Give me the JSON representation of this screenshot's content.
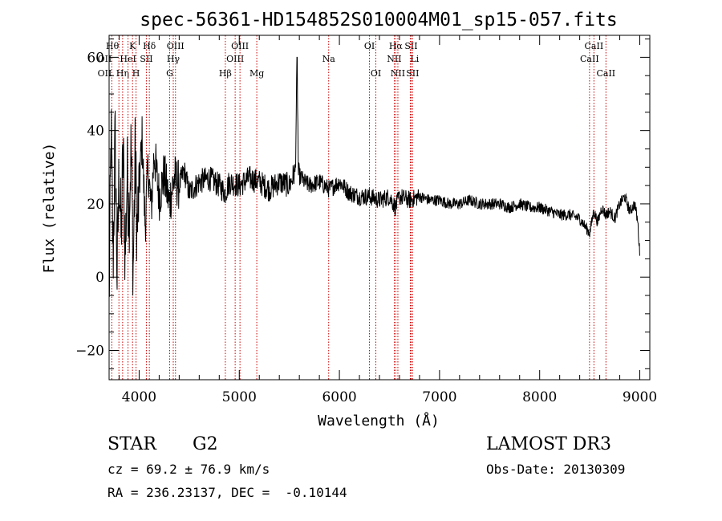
{
  "chart_data": {
    "type": "line",
    "title": "spec-56361-HD154852S010004M01_sp15-057.fits",
    "xlabel": "Wavelength (Å)",
    "ylabel": "Flux (relative)",
    "xlim": [
      3700,
      9100
    ],
    "ylim": [
      -28,
      66
    ],
    "x_ticks": [
      4000,
      5000,
      6000,
      7000,
      8000,
      9000
    ],
    "x_tick_labels": [
      "4000",
      "5000",
      "6000",
      "7000",
      "8000",
      "9000"
    ],
    "y_ticks": [
      -20,
      0,
      20,
      40,
      60
    ],
    "y_tick_labels": [
      "−20",
      "0",
      "20",
      "40",
      "60"
    ],
    "grid": false,
    "series": [
      {
        "name": "flux",
        "x": [
          3700,
          3720,
          3740,
          3760,
          3780,
          3800,
          3820,
          3840,
          3860,
          3880,
          3900,
          3920,
          3940,
          3960,
          3980,
          4000,
          4030,
          4060,
          4090,
          4120,
          4150,
          4200,
          4250,
          4300,
          4350,
          4400,
          4450,
          4500,
          4600,
          4700,
          4800,
          4860,
          4900,
          5000,
          5100,
          5200,
          5300,
          5400,
          5500,
          5560,
          5577,
          5590,
          5650,
          5700,
          5800,
          5900,
          6000,
          6100,
          6200,
          6300,
          6400,
          6500,
          6560,
          6600,
          6700,
          6800,
          6900,
          7000,
          7100,
          7200,
          7300,
          7400,
          7500,
          7600,
          7700,
          7800,
          7900,
          8000,
          8100,
          8200,
          8300,
          8400,
          8450,
          8500,
          8540,
          8580,
          8620,
          8660,
          8700,
          8750,
          8800,
          8850,
          8900,
          8950,
          8980,
          9000
        ],
        "y": [
          -8,
          40,
          5,
          38,
          0,
          30,
          10,
          35,
          5,
          28,
          18,
          36,
          2,
          33,
          12,
          24,
          38,
          14,
          30,
          18,
          34,
          22,
          28,
          20,
          27,
          25,
          29,
          23,
          26,
          27,
          25,
          23,
          26,
          25,
          27,
          26,
          24,
          26,
          25,
          29,
          60,
          28,
          26,
          25,
          26,
          24,
          26,
          23,
          22,
          22,
          21,
          22,
          19,
          22,
          21,
          22,
          21,
          21,
          20,
          20,
          21,
          20,
          20,
          20,
          19,
          20,
          19,
          19,
          18,
          17,
          17,
          16,
          14,
          12,
          18,
          15,
          19,
          17,
          18,
          16,
          20,
          22,
          18,
          20,
          15,
          6
        ]
      }
    ],
    "line_markers": [
      {
        "label": "Hθ",
        "x": 3798,
        "row": 0,
        "align": "right"
      },
      {
        "label": "OII",
        "x": 3727,
        "row": 1,
        "align": "right"
      },
      {
        "label": "OII",
        "x": 3727,
        "row": 2,
        "align": "right"
      },
      {
        "label": "Hη",
        "x": 3835,
        "row": 2,
        "align": "center"
      },
      {
        "label": "HeI",
        "x": 3889,
        "row": 1,
        "align": "center"
      },
      {
        "label": "K",
        "x": 3934,
        "row": 0,
        "align": "center"
      },
      {
        "label": "H",
        "x": 3969,
        "row": 2,
        "align": "center"
      },
      {
        "label": "SII",
        "x": 4072,
        "row": 1,
        "align": "center"
      },
      {
        "label": "Hδ",
        "x": 4102,
        "row": 0,
        "align": "center"
      },
      {
        "label": "OIII",
        "x": 4363,
        "row": 0,
        "align": "center"
      },
      {
        "label": "Hγ",
        "x": 4341,
        "row": 1,
        "align": "center"
      },
      {
        "label": "G",
        "x": 4305,
        "row": 2,
        "align": "center"
      },
      {
        "label": "Hβ",
        "x": 4861,
        "row": 2,
        "align": "center"
      },
      {
        "label": "OIII",
        "x": 5007,
        "row": 0,
        "align": "center"
      },
      {
        "label": "OIII",
        "x": 4959,
        "row": 1,
        "align": "center"
      },
      {
        "label": "Mg",
        "x": 5175,
        "row": 2,
        "align": "center"
      },
      {
        "label": "Na",
        "x": 5893,
        "row": 1,
        "align": "center"
      },
      {
        "label": "OI",
        "x": 6300,
        "row": 0,
        "align": "center"
      },
      {
        "label": "OI",
        "x": 6364,
        "row": 2,
        "align": "center"
      },
      {
        "label": "Hα",
        "x": 6563,
        "row": 0,
        "align": "center"
      },
      {
        "label": "SII",
        "x": 6716,
        "row": 0,
        "align": "center"
      },
      {
        "label": "NII",
        "x": 6548,
        "row": 1,
        "align": "center"
      },
      {
        "label": "Li",
        "x": 6708,
        "row": 1,
        "align": "left"
      },
      {
        "label": "NII",
        "x": 6584,
        "row": 2,
        "align": "center"
      },
      {
        "label": "SII",
        "x": 6731,
        "row": 2,
        "align": "center"
      },
      {
        "label": "CaII",
        "x": 8542,
        "row": 0,
        "align": "center"
      },
      {
        "label": "CaII",
        "x": 8498,
        "row": 1,
        "align": "center"
      },
      {
        "label": "CaII",
        "x": 8662,
        "row": 2,
        "align": "center"
      }
    ],
    "marker_color": "#cc0000",
    "line_color": "#000000"
  },
  "info": {
    "object_type": "STAR",
    "subclass": "G2",
    "redshift": "cz = 69.2 ± 76.9 km/s",
    "coords": "RA = 236.23137, DEC =  -0.10144",
    "survey": "LAMOST DR3",
    "obs_date": "Obs-Date: 20130309"
  }
}
